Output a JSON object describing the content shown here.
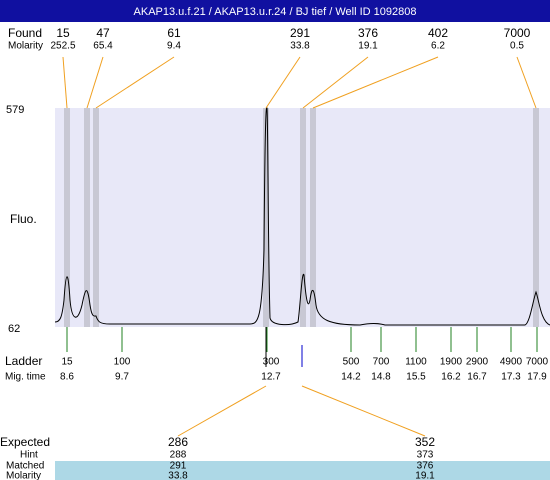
{
  "header": {
    "title": "AKAP13.u.f.21 / AKAP13.u.r.24 / BJ tief / Well ID 1092808"
  },
  "found": {
    "label": "Found",
    "molarity_label": "Molarity",
    "peaks": [
      {
        "size": 15,
        "molarity": 252.5
      },
      {
        "size": 47,
        "molarity": 65.4
      },
      {
        "size": 61,
        "molarity": 9.4
      },
      {
        "size": 291,
        "molarity": 33.8
      },
      {
        "size": 376,
        "molarity": 19.1
      },
      {
        "size": 402,
        "molarity": 6.2
      },
      {
        "size": 7000,
        "molarity": 0.5
      }
    ]
  },
  "plot": {
    "y_axis_label": "Fluo.",
    "y_max": 579,
    "y_min": 62
  },
  "ladder": {
    "label": "Ladder",
    "time_label": "Mig. time",
    "entries": [
      {
        "size": 15,
        "time": 8.6
      },
      {
        "size": 100,
        "time": 9.7
      },
      {
        "size": 300,
        "time": 12.7
      },
      {
        "size": 500,
        "time": 14.2
      },
      {
        "size": 700,
        "time": 14.8
      },
      {
        "size": 1100,
        "time": 15.5
      },
      {
        "size": 1900,
        "time": 16.2
      },
      {
        "size": 2900,
        "time": 16.7
      },
      {
        "size": 4900,
        "time": 17.3
      },
      {
        "size": 7000,
        "time": 17.9
      }
    ]
  },
  "expected": {
    "label": "Expected",
    "hint_label": "Hint",
    "matched_label": "Matched",
    "molarity_label": "Molarity",
    "columns": [
      {
        "expected": 286,
        "hint": 288,
        "matched": 291,
        "molarity": 33.8
      },
      {
        "expected": 352,
        "hint": 373,
        "matched": 376,
        "molarity": 19.1
      }
    ]
  }
}
